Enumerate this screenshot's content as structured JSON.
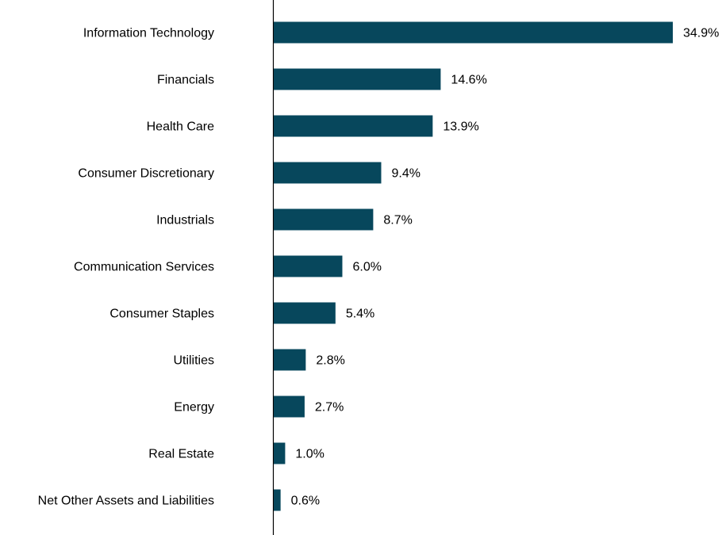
{
  "chart_data": {
    "type": "bar",
    "orientation": "horizontal",
    "categories": [
      "Information Technology",
      "Financials",
      "Health Care",
      "Consumer Discretionary",
      "Industrials",
      "Communication Services",
      "Consumer Staples",
      "Utilities",
      "Energy",
      "Real Estate",
      "Net Other Assets and Liabilities"
    ],
    "values": [
      34.9,
      14.6,
      13.9,
      9.4,
      8.7,
      6.0,
      5.4,
      2.8,
      2.7,
      1.0,
      0.6
    ],
    "value_labels": [
      "34.9%",
      "14.6%",
      "13.9%",
      "9.4%",
      "8.7%",
      "6.0%",
      "5.4%",
      "2.8%",
      "2.7%",
      "1.0%",
      "0.6%"
    ],
    "xlim": [
      0,
      35
    ],
    "grid": false,
    "bar_color": "#07475C"
  }
}
